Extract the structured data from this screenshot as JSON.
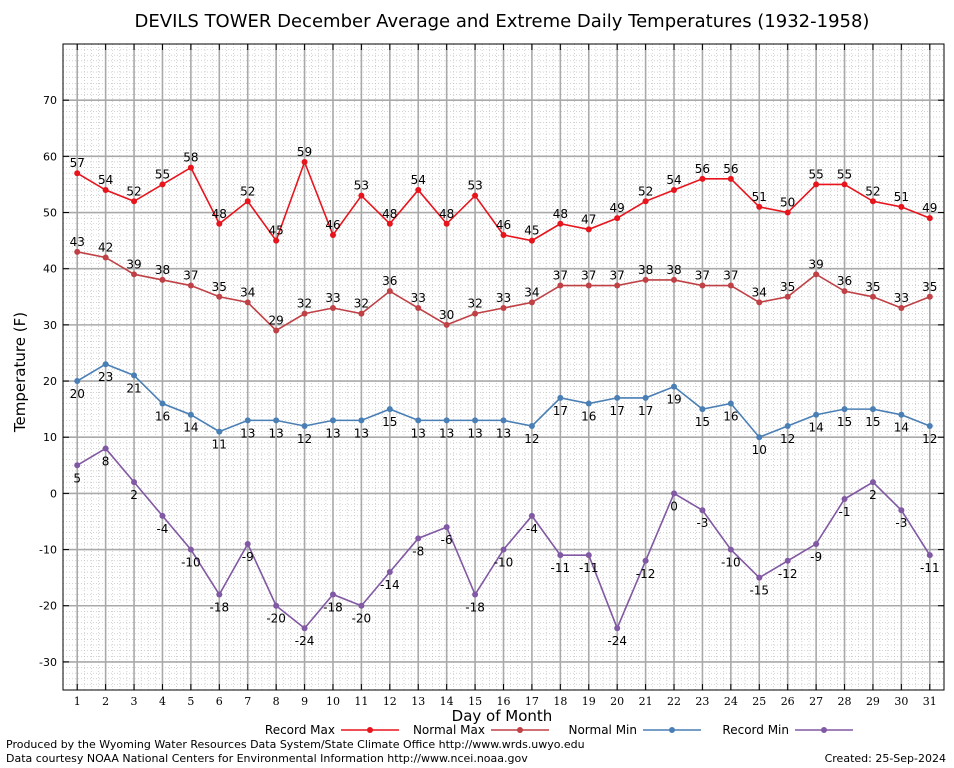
{
  "chart_data": {
    "type": "line",
    "title": "DEVILS TOWER December Average and Extreme Daily Temperatures (1932-1958)",
    "xlabel": "Day of Month",
    "ylabel": "Temperature (F)",
    "xlim": [
      0.5,
      31.5
    ],
    "ylim": [
      -35,
      80
    ],
    "yticks": [
      -30,
      -20,
      -10,
      0,
      10,
      20,
      30,
      40,
      50,
      60,
      70
    ],
    "x": [
      1,
      2,
      3,
      4,
      5,
      6,
      7,
      8,
      9,
      10,
      11,
      12,
      13,
      14,
      15,
      16,
      17,
      18,
      19,
      20,
      21,
      22,
      23,
      24,
      25,
      26,
      27,
      28,
      29,
      30,
      31
    ],
    "grid": true,
    "legend_position": "bottom",
    "series": [
      {
        "name": "Record Max",
        "color": "#e8141c",
        "label_pos": "above",
        "values": [
          57,
          54,
          52,
          55,
          58,
          48,
          52,
          45,
          59,
          46,
          53,
          48,
          54,
          48,
          53,
          46,
          45,
          48,
          47,
          49,
          52,
          54,
          56,
          56,
          51,
          50,
          55,
          55,
          52,
          51,
          49
        ]
      },
      {
        "name": "Normal Max",
        "color": "#bf4146",
        "label_pos": "above",
        "values": [
          43,
          42,
          39,
          38,
          37,
          35,
          34,
          29,
          32,
          33,
          32,
          36,
          33,
          30,
          32,
          33,
          34,
          37,
          37,
          37,
          38,
          38,
          37,
          37,
          34,
          35,
          39,
          36,
          35,
          33,
          35
        ]
      },
      {
        "name": "Normal Min",
        "color": "#4a7fb5",
        "label_pos": "below",
        "values": [
          20,
          23,
          21,
          16,
          14,
          11,
          13,
          13,
          12,
          13,
          13,
          15,
          13,
          13,
          13,
          13,
          12,
          17,
          16,
          17,
          17,
          19,
          15,
          16,
          10,
          12,
          14,
          15,
          15,
          14,
          12
        ]
      },
      {
        "name": "Record Min",
        "color": "#8158a3",
        "label_pos": "below",
        "values": [
          5,
          8,
          2,
          -4,
          -10,
          -18,
          -9,
          -20,
          -24,
          -18,
          -20,
          -14,
          -8,
          -6,
          -18,
          -10,
          -4,
          -11,
          -11,
          -24,
          -12,
          0,
          -3,
          -10,
          -15,
          -12,
          -9,
          -1,
          2,
          -3,
          -11
        ]
      }
    ]
  },
  "footer": {
    "producer": "Produced by the Wyoming Water Resources Data System/State Climate Office http://www.wrds.uwyo.edu",
    "source": "Data courtesy NOAA National Centers for Environmental Information http://www.ncei.noaa.gov",
    "created": "Created:  25-Sep-2024"
  }
}
